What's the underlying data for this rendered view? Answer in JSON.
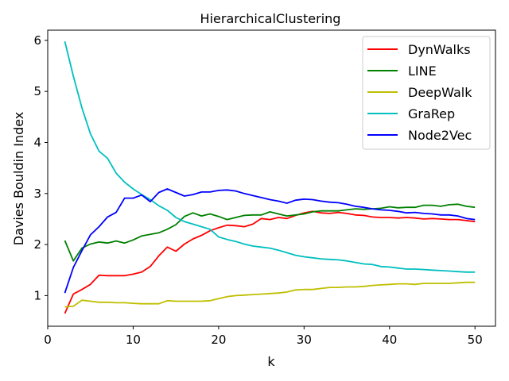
{
  "chart_data": {
    "type": "line",
    "title": "HierarchicalClustering",
    "xlabel": "k",
    "ylabel": "Davies Bouldin Index",
    "xlim": [
      0,
      52.4
    ],
    "ylim": [
      0.4,
      6.2
    ],
    "xticks": [
      0,
      10,
      20,
      30,
      40,
      50
    ],
    "yticks": [
      1,
      2,
      3,
      4,
      5,
      6
    ],
    "grid": false,
    "legend_position": "top-right",
    "x": [
      2,
      3,
      4,
      5,
      6,
      7,
      8,
      9,
      10,
      11,
      12,
      13,
      14,
      15,
      16,
      17,
      18,
      19,
      20,
      21,
      22,
      23,
      24,
      25,
      26,
      27,
      28,
      29,
      30,
      31,
      32,
      33,
      34,
      35,
      36,
      37,
      38,
      39,
      40,
      41,
      42,
      43,
      44,
      45,
      46,
      47,
      48,
      49,
      50
    ],
    "series": [
      {
        "name": "DynWalks",
        "color": "#ff0000",
        "values": [
          0.65,
          1.03,
          1.12,
          1.22,
          1.4,
          1.39,
          1.39,
          1.39,
          1.42,
          1.46,
          1.57,
          1.78,
          1.95,
          1.87,
          2.01,
          2.11,
          2.18,
          2.27,
          2.33,
          2.38,
          2.37,
          2.35,
          2.4,
          2.51,
          2.49,
          2.53,
          2.51,
          2.57,
          2.62,
          2.65,
          2.62,
          2.61,
          2.63,
          2.61,
          2.58,
          2.57,
          2.54,
          2.53,
          2.53,
          2.52,
          2.53,
          2.52,
          2.5,
          2.51,
          2.5,
          2.49,
          2.49,
          2.47,
          2.45
        ]
      },
      {
        "name": "LINE",
        "color": "#008000",
        "values": [
          2.08,
          1.68,
          1.93,
          2.01,
          2.05,
          2.03,
          2.07,
          2.03,
          2.09,
          2.17,
          2.2,
          2.23,
          2.3,
          2.39,
          2.55,
          2.62,
          2.56,
          2.6,
          2.55,
          2.49,
          2.53,
          2.57,
          2.58,
          2.58,
          2.64,
          2.6,
          2.56,
          2.58,
          2.6,
          2.64,
          2.66,
          2.66,
          2.66,
          2.68,
          2.7,
          2.69,
          2.7,
          2.71,
          2.74,
          2.72,
          2.73,
          2.73,
          2.77,
          2.77,
          2.75,
          2.78,
          2.79,
          2.75,
          2.73
        ]
      },
      {
        "name": "DeepWalk",
        "color": "#bfbf00",
        "values": [
          0.78,
          0.79,
          0.91,
          0.89,
          0.87,
          0.87,
          0.86,
          0.86,
          0.85,
          0.84,
          0.84,
          0.84,
          0.9,
          0.89,
          0.89,
          0.89,
          0.89,
          0.9,
          0.94,
          0.98,
          1.0,
          1.01,
          1.02,
          1.03,
          1.04,
          1.05,
          1.07,
          1.11,
          1.12,
          1.12,
          1.14,
          1.16,
          1.16,
          1.17,
          1.17,
          1.18,
          1.2,
          1.21,
          1.22,
          1.23,
          1.23,
          1.22,
          1.24,
          1.24,
          1.24,
          1.24,
          1.25,
          1.26,
          1.26
        ]
      },
      {
        "name": "GraRep",
        "color": "#00bfbf",
        "values": [
          5.98,
          5.3,
          4.68,
          4.17,
          3.83,
          3.69,
          3.4,
          3.22,
          3.09,
          2.98,
          2.88,
          2.76,
          2.67,
          2.53,
          2.45,
          2.4,
          2.35,
          2.3,
          2.15,
          2.1,
          2.06,
          2.01,
          1.97,
          1.95,
          1.93,
          1.89,
          1.84,
          1.79,
          1.76,
          1.74,
          1.72,
          1.71,
          1.7,
          1.68,
          1.65,
          1.62,
          1.61,
          1.57,
          1.56,
          1.54,
          1.52,
          1.52,
          1.51,
          1.5,
          1.49,
          1.48,
          1.47,
          1.46,
          1.46
        ]
      },
      {
        "name": "Node2Vec",
        "color": "#0000ff",
        "values": [
          1.05,
          1.55,
          1.88,
          2.19,
          2.35,
          2.54,
          2.63,
          2.91,
          2.91,
          2.97,
          2.84,
          3.02,
          3.09,
          3.02,
          2.95,
          2.98,
          3.03,
          3.03,
          3.06,
          3.07,
          3.05,
          3.0,
          2.96,
          2.92,
          2.88,
          2.85,
          2.81,
          2.87,
          2.89,
          2.88,
          2.85,
          2.83,
          2.82,
          2.79,
          2.75,
          2.73,
          2.7,
          2.68,
          2.67,
          2.65,
          2.62,
          2.63,
          2.61,
          2.6,
          2.58,
          2.58,
          2.56,
          2.51,
          2.49
        ]
      }
    ]
  }
}
